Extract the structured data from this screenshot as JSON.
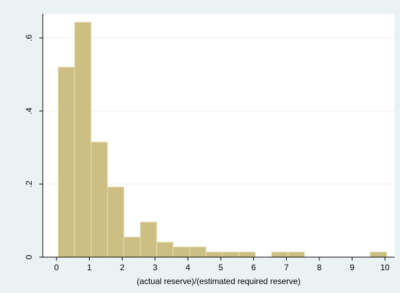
{
  "chart_data": {
    "type": "histogram",
    "x_label": "(actual reserve)/(estimated required reserve)",
    "bins": [
      0.05,
      0.55,
      1.05,
      1.55,
      2.05,
      2.55,
      3.05,
      3.55,
      4.05,
      4.55,
      5.05,
      5.55,
      6.05,
      6.55,
      7.05,
      7.55,
      8.05,
      8.55,
      9.05,
      9.55,
      10.05
    ],
    "values": [
      0.52,
      0.643,
      0.315,
      0.192,
      0.055,
      0.096,
      0.041,
      0.028,
      0.028,
      0.014,
      0.014,
      0.014,
      0,
      0.014,
      0.014,
      0,
      0,
      0,
      0,
      0.014
    ],
    "color": "#cdbf83",
    "xlim": [
      -0.42,
      10.29
    ],
    "ylim": [
      0,
      0.666
    ],
    "xticks": [
      0,
      1,
      2,
      3,
      4,
      5,
      6,
      7,
      8,
      9,
      10
    ],
    "yticks": [
      0,
      {
        "value": 0.2,
        "label": ".2"
      },
      {
        "value": 0.4,
        "label": ".4"
      },
      {
        "value": 0.6,
        "label": ".6"
      }
    ],
    "grid": true
  }
}
